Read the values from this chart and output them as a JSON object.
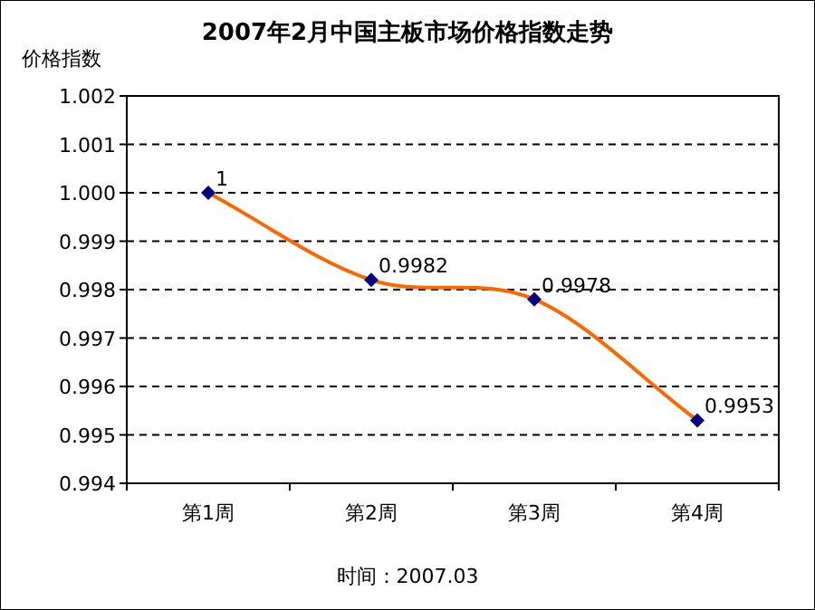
{
  "chart_data": {
    "type": "line",
    "title": "2007年2月中国主板市场价格指数走势",
    "ylabel": "价格指数",
    "categories": [
      "第1周",
      "第2周",
      "第3周",
      "第4周"
    ],
    "series": [
      {
        "color": "#ff6600",
        "values": [
          1,
          0.9982,
          0.9978,
          0.9953
        ]
      }
    ],
    "ylim": [
      0.994,
      1.002
    ],
    "yticks": [
      0.994,
      0.995,
      0.996,
      0.997,
      0.998,
      0.999,
      {
        "value": 1,
        "label": "1.000"
      },
      1.001,
      1.002
    ],
    "grid": "y",
    "marker": "diamond",
    "line_style": "solid",
    "data_labels": true,
    "annotations": [
      "时间：2007.03"
    ]
  }
}
